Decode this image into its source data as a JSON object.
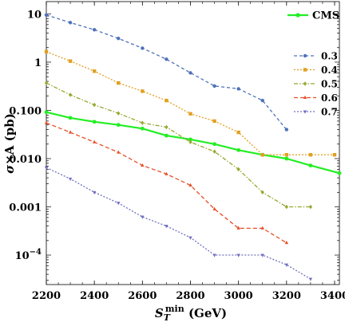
{
  "chart_data": {
    "type": "line",
    "title": "",
    "xlabel": "S_T^min (GeV)",
    "ylabel": "σ×A (pb)",
    "xlim": [
      2200,
      3420
    ],
    "ylim": [
      2.45e-05,
      18
    ],
    "yscale": "log",
    "xticks": [
      2200,
      2400,
      2600,
      2800,
      3000,
      3200,
      3400
    ],
    "yticks": [
      {
        "value": 10,
        "label": "10"
      },
      {
        "value": 1,
        "label": "1"
      },
      {
        "value": 0.1,
        "label": "0.100"
      },
      {
        "value": 0.01,
        "label": "0.010"
      },
      {
        "value": 0.001,
        "label": "0.001"
      },
      {
        "value": 0.0001,
        "label": "10^-4"
      }
    ],
    "legend_top": {
      "name": "CMS",
      "color": "#22ee22"
    },
    "series": [
      {
        "name": "CMS",
        "color": "#22ee22",
        "dash": "",
        "marker": "circle",
        "width": 2.2,
        "x": [
          2200,
          2300,
          2400,
          2500,
          2600,
          2700,
          2800,
          2900,
          3000,
          3100,
          3200,
          3300,
          3420
        ],
        "y": [
          0.092,
          0.07,
          0.058,
          0.05,
          0.042,
          0.03,
          0.025,
          0.02,
          0.015,
          0.012,
          0.01,
          0.0072,
          0.005
        ]
      },
      {
        "name": "0.3",
        "color": "#4f72b8",
        "dash": "4,3",
        "marker": "circle",
        "x": [
          2200,
          2300,
          2400,
          2500,
          2600,
          2700,
          2800,
          2900,
          3000,
          3100,
          3200
        ],
        "y": [
          9.5,
          6.6,
          4.7,
          3.1,
          1.95,
          1.15,
          0.6,
          0.32,
          0.28,
          0.16,
          0.04
        ]
      },
      {
        "name": "0.4",
        "color": "#e0a020",
        "dash": "2,2",
        "marker": "square",
        "x": [
          2200,
          2300,
          2400,
          2500,
          2600,
          2700,
          2800,
          2900,
          3000,
          3100,
          3200,
          3300,
          3400
        ],
        "y": [
          1.65,
          1.05,
          0.65,
          0.37,
          0.25,
          0.16,
          0.085,
          0.06,
          0.035,
          0.012,
          0.012,
          0.012,
          0.012
        ]
      },
      {
        "name": "0.5",
        "color": "#98a830",
        "dash": "5,2,1.5,2",
        "marker": "diamond",
        "x": [
          2200,
          2300,
          2400,
          2500,
          2600,
          2700,
          2800,
          2900,
          3000,
          3100,
          3200,
          3300
        ],
        "y": [
          0.37,
          0.21,
          0.13,
          0.087,
          0.055,
          0.045,
          0.022,
          0.014,
          0.006,
          0.002,
          0.001,
          0.001
        ]
      },
      {
        "name": "0.6",
        "color": "#e8502a",
        "dash": "5,3",
        "marker": "triangle-up",
        "x": [
          2200,
          2300,
          2400,
          2500,
          2600,
          2700,
          2800,
          2900,
          3000,
          3100,
          3200
        ],
        "y": [
          0.055,
          0.035,
          0.022,
          0.0135,
          0.0072,
          0.0048,
          0.0028,
          0.0009,
          0.00036,
          0.00036,
          0.00018
        ]
      },
      {
        "name": "0.7",
        "color": "#7070c0",
        "dash": "2,2",
        "marker": "triangle-down",
        "x": [
          2200,
          2300,
          2400,
          2500,
          2600,
          2700,
          2800,
          2900,
          3000,
          3100,
          3200,
          3300
        ],
        "y": [
          0.0065,
          0.0038,
          0.002,
          0.0012,
          0.00062,
          0.0004,
          0.00023,
          0.0001,
          0.0001,
          0.0001,
          6.3e-05,
          3.2e-05
        ]
      }
    ],
    "legend": [
      "0.3",
      "0.4",
      "0.5",
      "0.6",
      "0.7"
    ],
    "legend_position": "top-right",
    "grid": false
  }
}
